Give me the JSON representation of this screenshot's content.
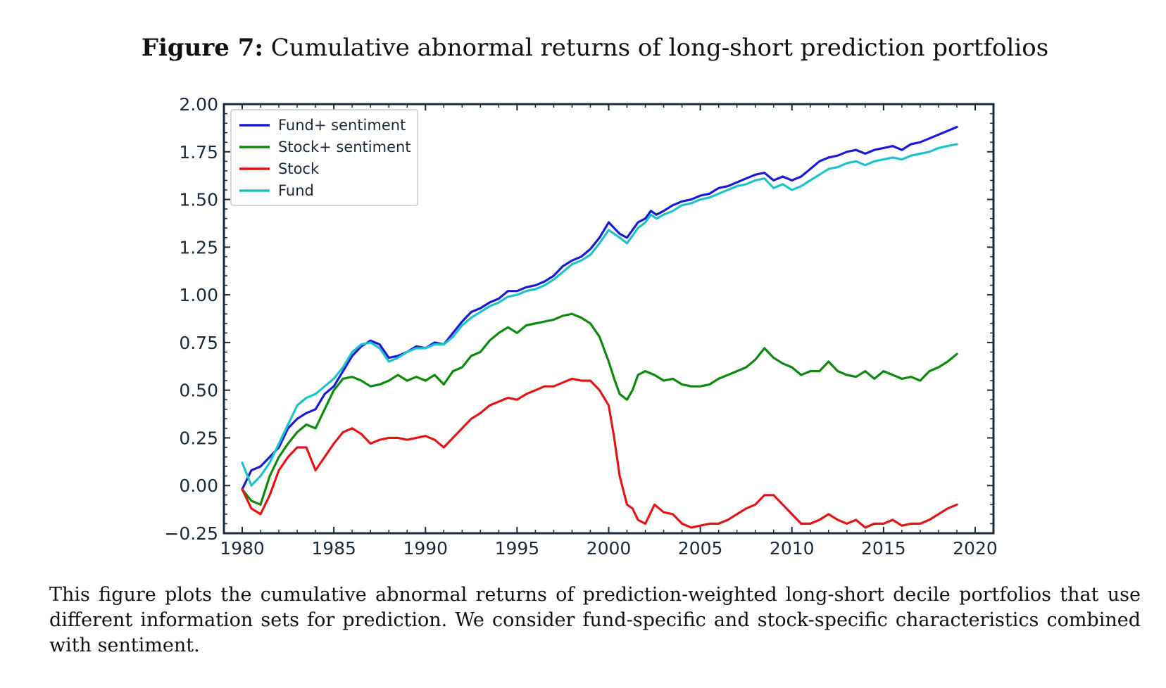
{
  "figure": {
    "label": "Figure 7:",
    "title": "Cumulative abnormal returns of long-short prediction portfolios",
    "caption": "This figure plots the cumulative abnormal returns of prediction-weighted long-short decile portfolios that use different information sets for prediction.  We consider fund-specific and stock-specific characteristics combined with sentiment."
  },
  "chart_data": {
    "type": "line",
    "title": "",
    "xlabel": "",
    "ylabel": "",
    "xlim": [
      1979,
      2021
    ],
    "ylim": [
      -0.25,
      2.0
    ],
    "xticks": [
      "1980",
      "1985",
      "1990",
      "1995",
      "2000",
      "2005",
      "2010",
      "2015",
      "2020"
    ],
    "yticks": [
      "2.00",
      "1.75",
      "1.50",
      "1.25",
      "1.00",
      "0.75",
      "0.50",
      "0.25",
      "0.00",
      "−0.25"
    ],
    "legend_position": "top-left",
    "grid": false,
    "series": [
      {
        "name": "Fund+ sentiment",
        "color": "#1a1ad6",
        "x": [
          1980.0,
          1980.5,
          1981.0,
          1981.5,
          1982.0,
          1982.5,
          1983.0,
          1983.5,
          1984.0,
          1984.5,
          1985.0,
          1985.5,
          1986.0,
          1986.5,
          1987.0,
          1987.5,
          1988.0,
          1988.5,
          1989.0,
          1989.5,
          1990.0,
          1990.5,
          1991.0,
          1991.5,
          1992.0,
          1992.5,
          1993.0,
          1993.5,
          1994.0,
          1994.5,
          1995.0,
          1995.5,
          1996.0,
          1996.5,
          1997.0,
          1997.5,
          1998.0,
          1998.5,
          1999.0,
          1999.5,
          2000.0,
          2000.3,
          2000.6,
          2001.0,
          2001.3,
          2001.6,
          2002.0,
          2002.3,
          2002.6,
          2003.0,
          2003.5,
          2004.0,
          2004.5,
          2005.0,
          2005.5,
          2006.0,
          2006.5,
          2007.0,
          2007.5,
          2008.0,
          2008.5,
          2009.0,
          2009.5,
          2010.0,
          2010.5,
          2011.0,
          2011.5,
          2012.0,
          2012.5,
          2013.0,
          2013.5,
          2014.0,
          2014.5,
          2015.0,
          2015.5,
          2016.0,
          2016.5,
          2017.0,
          2017.5,
          2018.0,
          2018.5,
          2019.0
        ],
        "y": [
          -0.02,
          0.08,
          0.1,
          0.15,
          0.2,
          0.3,
          0.35,
          0.38,
          0.4,
          0.48,
          0.52,
          0.6,
          0.68,
          0.73,
          0.76,
          0.74,
          0.67,
          0.68,
          0.7,
          0.73,
          0.72,
          0.75,
          0.74,
          0.8,
          0.86,
          0.91,
          0.93,
          0.96,
          0.98,
          1.02,
          1.02,
          1.04,
          1.05,
          1.07,
          1.1,
          1.15,
          1.18,
          1.2,
          1.24,
          1.3,
          1.38,
          1.35,
          1.32,
          1.3,
          1.34,
          1.38,
          1.4,
          1.44,
          1.42,
          1.44,
          1.47,
          1.49,
          1.5,
          1.52,
          1.53,
          1.56,
          1.57,
          1.59,
          1.61,
          1.63,
          1.64,
          1.6,
          1.62,
          1.6,
          1.62,
          1.66,
          1.7,
          1.72,
          1.73,
          1.75,
          1.76,
          1.74,
          1.76,
          1.77,
          1.78,
          1.76,
          1.79,
          1.8,
          1.82,
          1.84,
          1.86,
          1.88
        ]
      },
      {
        "name": "Stock+ sentiment",
        "color": "#0d8a0d",
        "x": [
          1980.0,
          1980.5,
          1981.0,
          1981.5,
          1982.0,
          1982.5,
          1983.0,
          1983.5,
          1984.0,
          1984.5,
          1985.0,
          1985.5,
          1986.0,
          1986.5,
          1987.0,
          1987.5,
          1988.0,
          1988.5,
          1989.0,
          1989.5,
          1990.0,
          1990.5,
          1991.0,
          1991.5,
          1992.0,
          1992.5,
          1993.0,
          1993.5,
          1994.0,
          1994.5,
          1995.0,
          1995.5,
          1996.0,
          1996.5,
          1997.0,
          1997.5,
          1998.0,
          1998.5,
          1999.0,
          1999.5,
          2000.0,
          2000.3,
          2000.6,
          2001.0,
          2001.3,
          2001.6,
          2002.0,
          2002.5,
          2003.0,
          2003.5,
          2004.0,
          2004.5,
          2005.0,
          2005.5,
          2006.0,
          2006.5,
          2007.0,
          2007.5,
          2008.0,
          2008.5,
          2009.0,
          2009.5,
          2010.0,
          2010.5,
          2011.0,
          2011.5,
          2012.0,
          2012.5,
          2013.0,
          2013.5,
          2014.0,
          2014.5,
          2015.0,
          2015.5,
          2016.0,
          2016.5,
          2017.0,
          2017.5,
          2018.0,
          2018.5,
          2019.0
        ],
        "y": [
          -0.02,
          -0.08,
          -0.1,
          0.05,
          0.15,
          0.22,
          0.28,
          0.32,
          0.3,
          0.4,
          0.5,
          0.56,
          0.57,
          0.55,
          0.52,
          0.53,
          0.55,
          0.58,
          0.55,
          0.57,
          0.55,
          0.58,
          0.53,
          0.6,
          0.62,
          0.68,
          0.7,
          0.76,
          0.8,
          0.83,
          0.8,
          0.84,
          0.85,
          0.86,
          0.87,
          0.89,
          0.9,
          0.88,
          0.85,
          0.78,
          0.65,
          0.56,
          0.48,
          0.45,
          0.5,
          0.58,
          0.6,
          0.58,
          0.55,
          0.56,
          0.53,
          0.52,
          0.52,
          0.53,
          0.56,
          0.58,
          0.6,
          0.62,
          0.66,
          0.72,
          0.67,
          0.64,
          0.62,
          0.58,
          0.6,
          0.6,
          0.65,
          0.6,
          0.58,
          0.57,
          0.6,
          0.56,
          0.6,
          0.58,
          0.56,
          0.57,
          0.55,
          0.6,
          0.62,
          0.65,
          0.69
        ]
      },
      {
        "name": "Stock",
        "color": "#e01616",
        "x": [
          1980.0,
          1980.5,
          1981.0,
          1981.5,
          1982.0,
          1982.5,
          1983.0,
          1983.5,
          1984.0,
          1984.5,
          1985.0,
          1985.5,
          1986.0,
          1986.5,
          1987.0,
          1987.5,
          1988.0,
          1988.5,
          1989.0,
          1989.5,
          1990.0,
          1990.5,
          1991.0,
          1991.5,
          1992.0,
          1992.5,
          1993.0,
          1993.5,
          1994.0,
          1994.5,
          1995.0,
          1995.5,
          1996.0,
          1996.5,
          1997.0,
          1997.5,
          1998.0,
          1998.5,
          1999.0,
          1999.5,
          2000.0,
          2000.3,
          2000.6,
          2001.0,
          2001.3,
          2001.6,
          2002.0,
          2002.5,
          2003.0,
          2003.5,
          2004.0,
          2004.5,
          2005.0,
          2005.5,
          2006.0,
          2006.5,
          2007.0,
          2007.5,
          2008.0,
          2008.5,
          2009.0,
          2009.5,
          2010.0,
          2010.5,
          2011.0,
          2011.5,
          2012.0,
          2012.5,
          2013.0,
          2013.5,
          2014.0,
          2014.5,
          2015.0,
          2015.5,
          2016.0,
          2016.5,
          2017.0,
          2017.5,
          2018.0,
          2018.5,
          2019.0
        ],
        "y": [
          -0.02,
          -0.12,
          -0.15,
          -0.05,
          0.08,
          0.15,
          0.2,
          0.2,
          0.08,
          0.15,
          0.22,
          0.28,
          0.3,
          0.27,
          0.22,
          0.24,
          0.25,
          0.25,
          0.24,
          0.25,
          0.26,
          0.24,
          0.2,
          0.25,
          0.3,
          0.35,
          0.38,
          0.42,
          0.44,
          0.46,
          0.45,
          0.48,
          0.5,
          0.52,
          0.52,
          0.54,
          0.56,
          0.55,
          0.55,
          0.5,
          0.42,
          0.25,
          0.05,
          -0.1,
          -0.12,
          -0.18,
          -0.2,
          -0.1,
          -0.14,
          -0.15,
          -0.2,
          -0.22,
          -0.21,
          -0.2,
          -0.2,
          -0.18,
          -0.15,
          -0.12,
          -0.1,
          -0.05,
          -0.05,
          -0.1,
          -0.15,
          -0.2,
          -0.2,
          -0.18,
          -0.15,
          -0.18,
          -0.2,
          -0.18,
          -0.22,
          -0.2,
          -0.2,
          -0.18,
          -0.21,
          -0.2,
          -0.2,
          -0.18,
          -0.15,
          -0.12,
          -0.1
        ]
      },
      {
        "name": "Fund",
        "color": "#1ec2c8",
        "x": [
          1980.0,
          1980.5,
          1981.0,
          1981.5,
          1982.0,
          1982.5,
          1983.0,
          1983.5,
          1984.0,
          1984.5,
          1985.0,
          1985.5,
          1986.0,
          1986.5,
          1987.0,
          1987.5,
          1988.0,
          1988.5,
          1989.0,
          1989.5,
          1990.0,
          1990.5,
          1991.0,
          1991.5,
          1992.0,
          1992.5,
          1993.0,
          1993.5,
          1994.0,
          1994.5,
          1995.0,
          1995.5,
          1996.0,
          1996.5,
          1997.0,
          1997.5,
          1998.0,
          1998.5,
          1999.0,
          1999.5,
          2000.0,
          2000.3,
          2000.6,
          2001.0,
          2001.3,
          2001.6,
          2002.0,
          2002.3,
          2002.6,
          2003.0,
          2003.5,
          2004.0,
          2004.5,
          2005.0,
          2005.5,
          2006.0,
          2006.5,
          2007.0,
          2007.5,
          2008.0,
          2008.5,
          2009.0,
          2009.5,
          2010.0,
          2010.5,
          2011.0,
          2011.5,
          2012.0,
          2012.5,
          2013.0,
          2013.5,
          2014.0,
          2014.5,
          2015.0,
          2015.5,
          2016.0,
          2016.5,
          2017.0,
          2017.5,
          2018.0,
          2018.5,
          2019.0
        ],
        "y": [
          0.12,
          0.0,
          0.05,
          0.12,
          0.22,
          0.32,
          0.42,
          0.46,
          0.48,
          0.52,
          0.56,
          0.62,
          0.7,
          0.74,
          0.75,
          0.72,
          0.65,
          0.67,
          0.7,
          0.72,
          0.72,
          0.74,
          0.74,
          0.78,
          0.84,
          0.88,
          0.91,
          0.94,
          0.96,
          0.99,
          1.0,
          1.02,
          1.03,
          1.05,
          1.08,
          1.12,
          1.16,
          1.18,
          1.21,
          1.27,
          1.34,
          1.32,
          1.3,
          1.27,
          1.31,
          1.35,
          1.38,
          1.42,
          1.4,
          1.42,
          1.44,
          1.47,
          1.48,
          1.5,
          1.51,
          1.53,
          1.55,
          1.57,
          1.58,
          1.6,
          1.61,
          1.56,
          1.58,
          1.55,
          1.57,
          1.6,
          1.63,
          1.66,
          1.67,
          1.69,
          1.7,
          1.68,
          1.7,
          1.71,
          1.72,
          1.71,
          1.73,
          1.74,
          1.75,
          1.77,
          1.78,
          1.79
        ]
      }
    ]
  }
}
